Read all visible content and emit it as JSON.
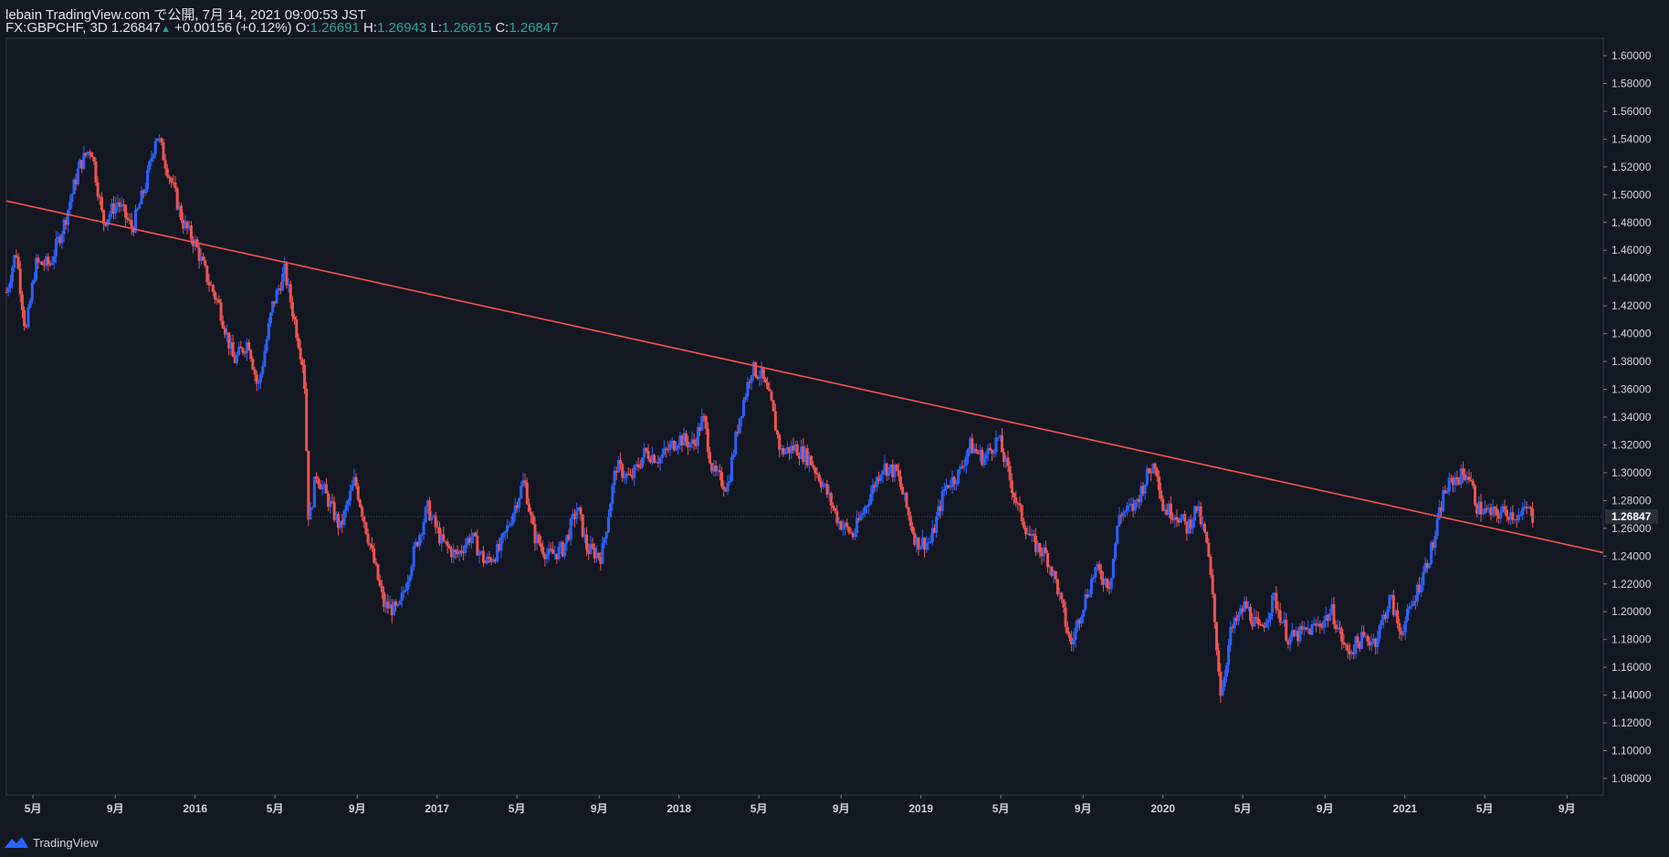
{
  "header": {
    "publish_line": "lebain TradingView.com で公開, 7月 14, 2021 09:00:53 JST",
    "symbol": "FX:GBPCHF, 3D",
    "last": "1.26847",
    "change_arrow": "▲",
    "change": "+0.00156 (+0.12%)",
    "o_label": "O:",
    "o_value": "1.26691",
    "h_label": "H:",
    "h_value": "1.26943",
    "l_label": "L:",
    "l_value": "1.26615",
    "c_label": "C:",
    "c_value": "1.26847"
  },
  "footer": {
    "brand": "TradingView"
  },
  "colors": {
    "background": "#131722",
    "up": "#2962ff",
    "down": "#ef5350",
    "trendline": "#f55350",
    "axis_text": "#d1d4dc",
    "grid": "#363a45",
    "last_price_tag": "#2a2e39"
  },
  "chart_data": {
    "type": "candlestick",
    "title": "FX:GBPCHF, 3D",
    "ylim": [
      1.07,
      1.61
    ],
    "y_ticks": [
      "1.60000",
      "1.58000",
      "1.56000",
      "1.54000",
      "1.52000",
      "1.50000",
      "1.48000",
      "1.46000",
      "1.44000",
      "1.42000",
      "1.40000",
      "1.38000",
      "1.36000",
      "1.34000",
      "1.32000",
      "1.30000",
      "1.28000",
      "1.26000",
      "1.24000",
      "1.22000",
      "1.20000",
      "1.18000",
      "1.16000",
      "1.14000",
      "1.12000",
      "1.10000",
      "1.08000"
    ],
    "x_labels": [
      {
        "label": "5月",
        "t": 2015.33
      },
      {
        "label": "9月",
        "t": 2015.67
      },
      {
        "label": "2016",
        "t": 2016.0
      },
      {
        "label": "5月",
        "t": 2016.33
      },
      {
        "label": "9月",
        "t": 2016.67
      },
      {
        "label": "2017",
        "t": 2017.0
      },
      {
        "label": "5月",
        "t": 2017.33
      },
      {
        "label": "9月",
        "t": 2017.67
      },
      {
        "label": "2018",
        "t": 2018.0
      },
      {
        "label": "5月",
        "t": 2018.33
      },
      {
        "label": "9月",
        "t": 2018.67
      },
      {
        "label": "2019",
        "t": 2019.0
      },
      {
        "label": "5月",
        "t": 2019.33
      },
      {
        "label": "9月",
        "t": 2019.67
      },
      {
        "label": "2020",
        "t": 2020.0
      },
      {
        "label": "5月",
        "t": 2020.33
      },
      {
        "label": "9月",
        "t": 2020.67
      },
      {
        "label": "2021",
        "t": 2021.0
      },
      {
        "label": "5月",
        "t": 2021.33
      },
      {
        "label": "9月",
        "t": 2021.67
      }
    ],
    "xlim": [
      2015.22,
      2021.82
    ],
    "last_price": 1.26847,
    "last_price_label": "1.26847",
    "trendline": {
      "from": {
        "t": 2015.22,
        "price": 1.4955
      },
      "to": {
        "t": 2021.82,
        "price": 1.2425
      }
    },
    "price_path": [
      [
        2015.22,
        1.43
      ],
      [
        2015.26,
        1.46
      ],
      [
        2015.3,
        1.4
      ],
      [
        2015.34,
        1.45
      ],
      [
        2015.4,
        1.45
      ],
      [
        2015.46,
        1.48
      ],
      [
        2015.52,
        1.52
      ],
      [
        2015.57,
        1.535
      ],
      [
        2015.62,
        1.48
      ],
      [
        2015.68,
        1.495
      ],
      [
        2015.74,
        1.475
      ],
      [
        2015.8,
        1.51
      ],
      [
        2015.84,
        1.545
      ],
      [
        2015.9,
        1.51
      ],
      [
        2015.95,
        1.48
      ],
      [
        2016.0,
        1.465
      ],
      [
        2016.05,
        1.44
      ],
      [
        2016.1,
        1.42
      ],
      [
        2016.16,
        1.38
      ],
      [
        2016.22,
        1.395
      ],
      [
        2016.26,
        1.36
      ],
      [
        2016.32,
        1.42
      ],
      [
        2016.37,
        1.445
      ],
      [
        2016.41,
        1.41
      ],
      [
        2016.45,
        1.375
      ],
      [
        2016.47,
        1.262
      ],
      [
        2016.5,
        1.3
      ],
      [
        2016.55,
        1.28
      ],
      [
        2016.6,
        1.26
      ],
      [
        2016.66,
        1.295
      ],
      [
        2016.72,
        1.25
      ],
      [
        2016.78,
        1.205
      ],
      [
        2016.84,
        1.2
      ],
      [
        2016.9,
        1.24
      ],
      [
        2016.96,
        1.275
      ],
      [
        2017.02,
        1.25
      ],
      [
        2017.08,
        1.24
      ],
      [
        2017.14,
        1.255
      ],
      [
        2017.2,
        1.235
      ],
      [
        2017.26,
        1.245
      ],
      [
        2017.32,
        1.275
      ],
      [
        2017.36,
        1.295
      ],
      [
        2017.4,
        1.255
      ],
      [
        2017.46,
        1.24
      ],
      [
        2017.52,
        1.245
      ],
      [
        2017.58,
        1.275
      ],
      [
        2017.62,
        1.245
      ],
      [
        2017.68,
        1.24
      ],
      [
        2017.74,
        1.305
      ],
      [
        2017.8,
        1.295
      ],
      [
        2017.86,
        1.315
      ],
      [
        2017.92,
        1.31
      ],
      [
        2018.0,
        1.325
      ],
      [
        2018.06,
        1.32
      ],
      [
        2018.1,
        1.34
      ],
      [
        2018.14,
        1.3
      ],
      [
        2018.2,
        1.29
      ],
      [
        2018.25,
        1.34
      ],
      [
        2018.3,
        1.375
      ],
      [
        2018.34,
        1.37
      ],
      [
        2018.38,
        1.35
      ],
      [
        2018.42,
        1.315
      ],
      [
        2018.48,
        1.318
      ],
      [
        2018.54,
        1.31
      ],
      [
        2018.6,
        1.29
      ],
      [
        2018.66,
        1.265
      ],
      [
        2018.72,
        1.255
      ],
      [
        2018.78,
        1.28
      ],
      [
        2018.84,
        1.305
      ],
      [
        2018.9,
        1.3
      ],
      [
        2018.94,
        1.275
      ],
      [
        2018.98,
        1.25
      ],
      [
        2019.04,
        1.25
      ],
      [
        2019.1,
        1.29
      ],
      [
        2019.16,
        1.3
      ],
      [
        2019.2,
        1.32
      ],
      [
        2019.26,
        1.31
      ],
      [
        2019.32,
        1.325
      ],
      [
        2019.36,
        1.3
      ],
      [
        2019.4,
        1.275
      ],
      [
        2019.46,
        1.25
      ],
      [
        2019.52,
        1.24
      ],
      [
        2019.56,
        1.22
      ],
      [
        2019.62,
        1.175
      ],
      [
        2019.66,
        1.2
      ],
      [
        2019.72,
        1.23
      ],
      [
        2019.78,
        1.22
      ],
      [
        2019.82,
        1.27
      ],
      [
        2019.88,
        1.275
      ],
      [
        2019.94,
        1.3
      ],
      [
        2019.97,
        1.308
      ],
      [
        2020.0,
        1.275
      ],
      [
        2020.06,
        1.27
      ],
      [
        2020.1,
        1.26
      ],
      [
        2020.14,
        1.275
      ],
      [
        2020.18,
        1.25
      ],
      [
        2020.2,
        1.22
      ],
      [
        2020.24,
        1.14
      ],
      [
        2020.28,
        1.185
      ],
      [
        2020.34,
        1.205
      ],
      [
        2020.4,
        1.185
      ],
      [
        2020.46,
        1.21
      ],
      [
        2020.52,
        1.18
      ],
      [
        2020.58,
        1.185
      ],
      [
        2020.64,
        1.19
      ],
      [
        2020.7,
        1.2
      ],
      [
        2020.76,
        1.17
      ],
      [
        2020.82,
        1.18
      ],
      [
        2020.88,
        1.18
      ],
      [
        2020.94,
        1.21
      ],
      [
        2020.98,
        1.185
      ],
      [
        2021.02,
        1.2
      ],
      [
        2021.08,
        1.23
      ],
      [
        2021.12,
        1.25
      ],
      [
        2021.16,
        1.285
      ],
      [
        2021.2,
        1.295
      ],
      [
        2021.26,
        1.3
      ],
      [
        2021.3,
        1.275
      ],
      [
        2021.36,
        1.27
      ],
      [
        2021.42,
        1.272
      ],
      [
        2021.48,
        1.268
      ],
      [
        2021.5,
        1.275
      ],
      [
        2021.53,
        1.268
      ]
    ]
  }
}
